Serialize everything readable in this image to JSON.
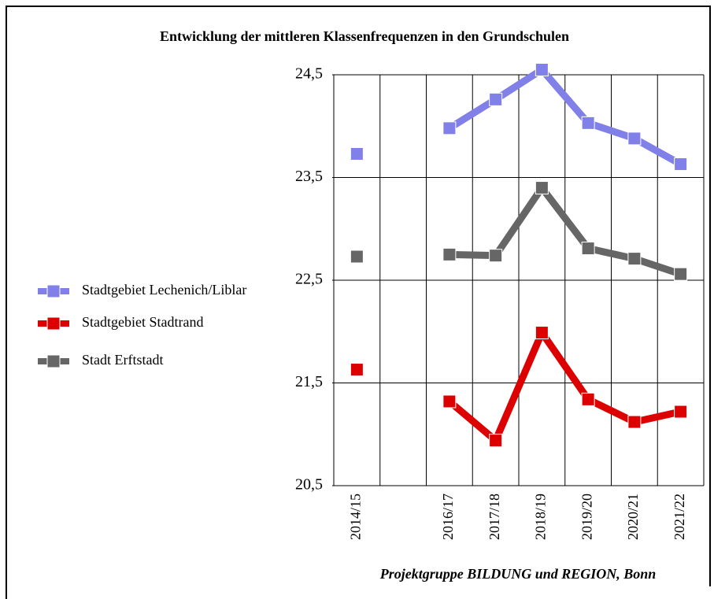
{
  "chart_data": {
    "type": "line",
    "title": "Entwicklung der mittleren Klassenfrequenzen in den Grundschulen",
    "source": "Projektgruppe BILDUNG und REGION, Bonn",
    "categories": [
      "2014/15",
      null,
      "2016/17",
      "2017/18",
      "2018/19",
      "2019/20",
      "2020/21",
      "2021/22"
    ],
    "series": [
      {
        "name": "Stadtgebiet Lechenich/Liblar",
        "color": "#8080e8",
        "values": [
          23.73,
          null,
          23.98,
          24.26,
          24.55,
          24.03,
          23.88,
          23.63
        ]
      },
      {
        "name": "Stadtgebiet Stadtrand",
        "color": "#dd0000",
        "values": [
          21.63,
          null,
          21.32,
          20.94,
          21.99,
          21.34,
          21.12,
          21.22
        ]
      },
      {
        "name": "Stadt Erftstadt",
        "color": "#666666",
        "values": [
          22.73,
          null,
          22.75,
          22.74,
          23.4,
          22.81,
          22.71,
          22.56
        ]
      }
    ],
    "ylim": [
      20.5,
      24.5
    ],
    "yticks": [
      {
        "value": 20.5,
        "label": "20,5"
      },
      {
        "value": 21.5,
        "label": "21,5"
      },
      {
        "value": 22.5,
        "label": "22,5"
      },
      {
        "value": 23.5,
        "label": "23,5"
      },
      {
        "value": 24.5,
        "label": "24,5"
      }
    ],
    "grid": true,
    "legend": "left"
  }
}
